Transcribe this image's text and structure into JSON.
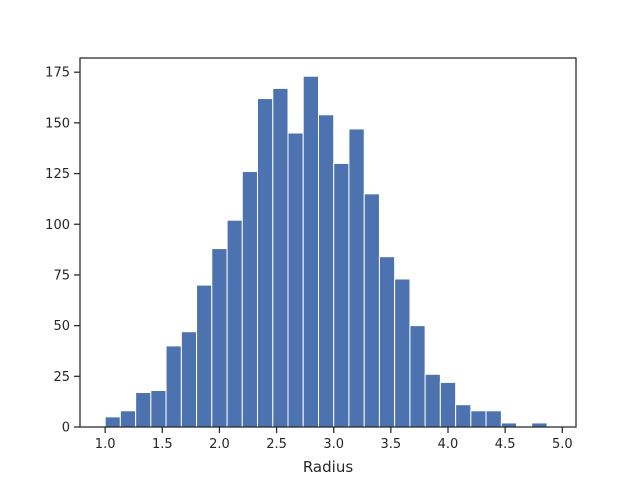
{
  "chart_data": {
    "type": "histogram",
    "title": "",
    "xlabel": "Radius",
    "ylabel": "",
    "xlim": [
      0.78,
      5.12
    ],
    "ylim": [
      0,
      182
    ],
    "xticks": [
      1.0,
      1.5,
      2.0,
      2.5,
      3.0,
      3.5,
      4.0,
      4.5,
      5.0
    ],
    "xtick_labels": [
      "1.0",
      "1.5",
      "2.0",
      "2.5",
      "3.0",
      "3.5",
      "4.0",
      "4.5",
      "5.0"
    ],
    "yticks": [
      0,
      25,
      50,
      75,
      100,
      125,
      150,
      175
    ],
    "ytick_labels": [
      "0",
      "25",
      "50",
      "75",
      "100",
      "125",
      "150",
      "175"
    ],
    "bin_edges": [
      1.0,
      1.133,
      1.267,
      1.4,
      1.533,
      1.667,
      1.8,
      1.933,
      2.067,
      2.2,
      2.333,
      2.467,
      2.6,
      2.733,
      2.867,
      3.0,
      3.133,
      3.267,
      3.4,
      3.533,
      3.667,
      3.8,
      3.933,
      4.067,
      4.2,
      4.333,
      4.467,
      4.6,
      4.733,
      4.867,
      5.0
    ],
    "counts": [
      5,
      8,
      17,
      18,
      40,
      47,
      70,
      88,
      102,
      126,
      162,
      167,
      145,
      173,
      154,
      130,
      147,
      115,
      84,
      73,
      50,
      26,
      22,
      11,
      8,
      8,
      2,
      0,
      2,
      0
    ],
    "colors": {
      "bar": "#4c72b0",
      "bar_edge": "#ffffff",
      "axis": "#262626"
    },
    "grid": false,
    "legend": "none"
  }
}
